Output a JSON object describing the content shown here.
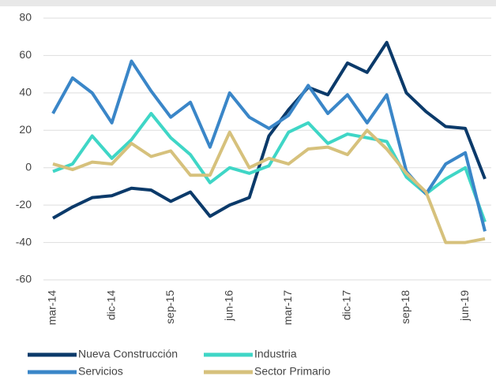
{
  "chart_data": {
    "type": "line",
    "categories": [
      "mar-14",
      null,
      null,
      "dic-14",
      null,
      null,
      "sep-15",
      null,
      null,
      "jun-16",
      null,
      null,
      "mar-17",
      null,
      null,
      "dic-17",
      null,
      null,
      "sep-18",
      null,
      null,
      "jun-19",
      null
    ],
    "series": [
      {
        "name": "Nueva Construcción",
        "color": "#0b3a6a",
        "values": [
          -27,
          -21,
          -16,
          -15,
          -11,
          -12,
          -18,
          -13,
          -26,
          -20,
          -16,
          17,
          31,
          43,
          39,
          56,
          51,
          67,
          40,
          30,
          22,
          21,
          -6
        ]
      },
      {
        "name": "Industria",
        "color": "#3fd6c6",
        "values": [
          -2,
          2,
          17,
          5,
          15,
          29,
          16,
          7,
          -8,
          0,
          -3,
          1,
          19,
          24,
          13,
          18,
          16,
          14,
          -5,
          -14,
          -6,
          0,
          -29
        ]
      },
      {
        "name": "Servicios",
        "color": "#3a86c8",
        "values": [
          29,
          48,
          40,
          24,
          57,
          41,
          27,
          35,
          11,
          40,
          27,
          21,
          28,
          44,
          29,
          39,
          24,
          39,
          -2,
          -14,
          2,
          8,
          -34
        ]
      },
      {
        "name": "Sector Primario",
        "color": "#d6c17c",
        "values": [
          2,
          -1,
          3,
          2,
          13,
          6,
          9,
          -4,
          -4,
          19,
          0,
          5,
          2,
          10,
          11,
          7,
          20,
          10,
          -3,
          -13,
          -40,
          -40,
          -38
        ]
      }
    ],
    "ylim": [
      -60,
      80
    ],
    "yticks": [
      -60,
      -40,
      -20,
      0,
      20,
      40,
      60,
      80
    ],
    "grid": true
  }
}
